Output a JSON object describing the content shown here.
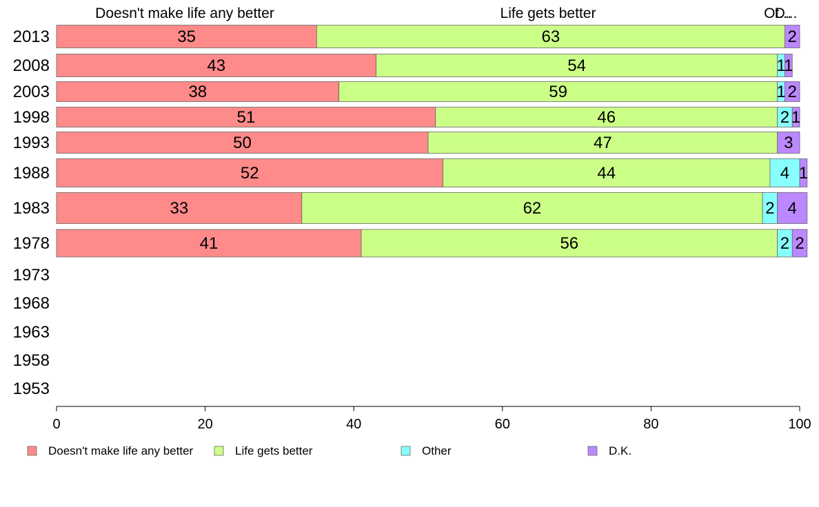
{
  "chart_data": {
    "type": "bar",
    "orientation": "horizontal",
    "stacked": true,
    "xlim": [
      0,
      100
    ],
    "x_ticks": [
      "0",
      "20",
      "40",
      "60",
      "80",
      "100"
    ],
    "top_labels": [
      "Doesn't make life any better",
      "Life gets better",
      "Ot...",
      "D..."
    ],
    "categories": [
      "2013",
      "2008",
      "2003",
      "1998",
      "1993",
      "1988",
      "1983",
      "1978",
      "1973",
      "1968",
      "1963",
      "1958",
      "1953"
    ],
    "series": [
      {
        "name": "Doesn't make life any better",
        "color": "#ff8a8a",
        "values": [
          35,
          43,
          38,
          51,
          50,
          52,
          33,
          41,
          null,
          null,
          null,
          null,
          null
        ]
      },
      {
        "name": "Life gets better",
        "color": "#ccff88",
        "values": [
          63,
          54,
          59,
          46,
          47,
          44,
          62,
          56,
          null,
          null,
          null,
          null,
          null
        ]
      },
      {
        "name": "Other",
        "color": "#88ffff",
        "values": [
          0,
          1,
          1,
          2,
          0,
          4,
          2,
          2,
          null,
          null,
          null,
          null,
          null
        ]
      },
      {
        "name": "D.K.",
        "color": "#bb88ff",
        "values": [
          2,
          1,
          2,
          1,
          3,
          1,
          4,
          2,
          null,
          null,
          null,
          null,
          null
        ]
      }
    ],
    "legend": [
      "Doesn't make life any better",
      "Life gets better",
      "Other",
      "D.K."
    ],
    "legend_position": "bottom",
    "grid": false
  }
}
